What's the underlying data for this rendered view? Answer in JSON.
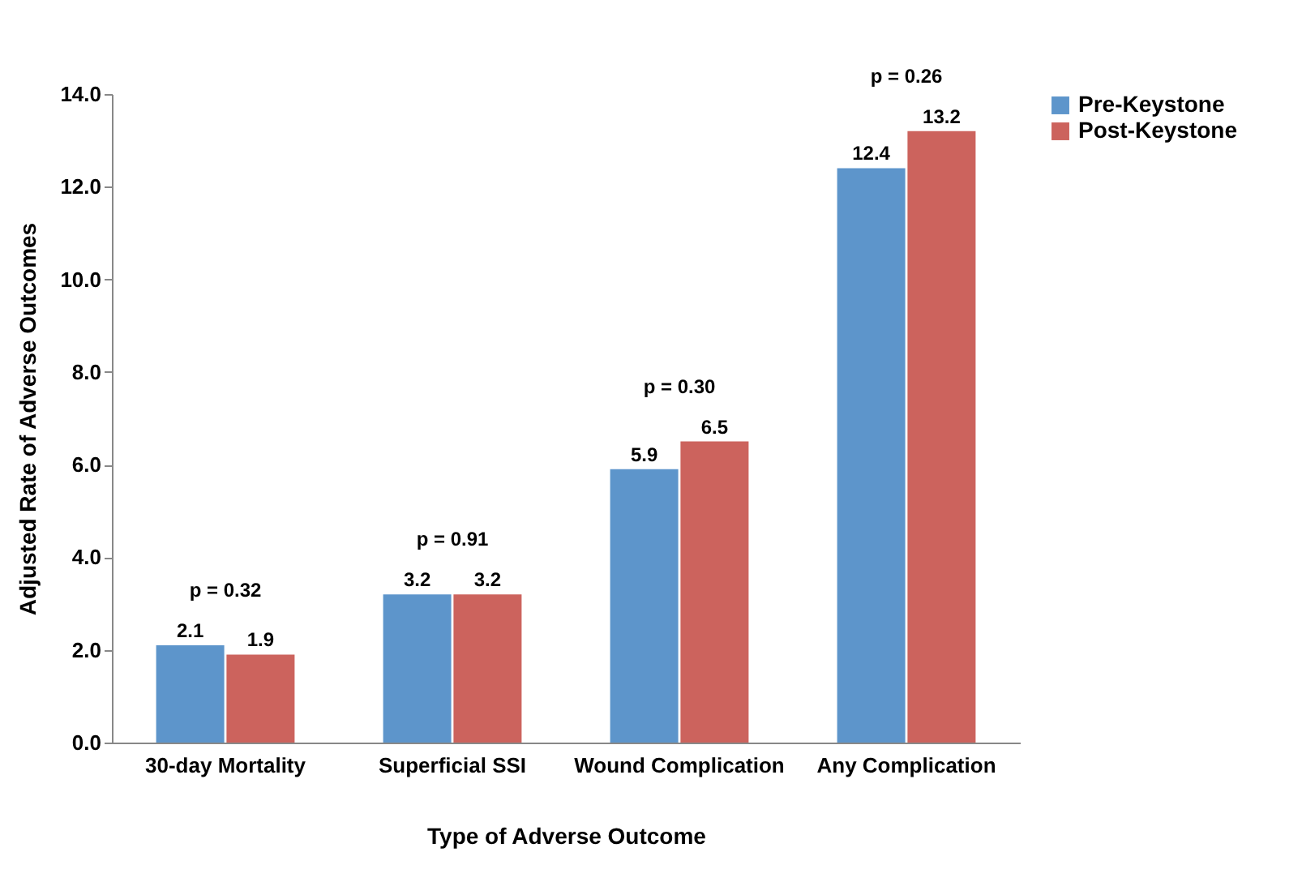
{
  "chart_data": {
    "type": "bar",
    "xlabel": "Type of Adverse Outcome",
    "ylabel": "Adjusted Rate of Adverse Outcomes",
    "categories": [
      "30-day Mortality",
      "Superficial SSI",
      "Wound Complication",
      "Any Complication"
    ],
    "series": [
      {
        "name": "Pre-Keystone",
        "color": "#5d95cb",
        "values": [
          2.1,
          3.2,
          5.9,
          12.4
        ]
      },
      {
        "name": "Post-Keystone",
        "color": "#cc635d",
        "values": [
          1.9,
          3.2,
          6.5,
          13.2
        ]
      }
    ],
    "ylim": [
      0,
      14
    ],
    "yticks": [
      {
        "value": 0,
        "label": "0.0"
      },
      {
        "value": 2,
        "label": "2.0"
      },
      {
        "value": 4,
        "label": "4.0"
      },
      {
        "value": 6,
        "label": "6.0"
      },
      {
        "value": 8,
        "label": "8.0"
      },
      {
        "value": 10,
        "label": "10.0"
      },
      {
        "value": 12,
        "label": "12.0"
      },
      {
        "value": 14,
        "label": "14.0"
      }
    ],
    "data_labels": true,
    "grid": false,
    "legend": "right",
    "annotations": [
      "p = 0.32",
      "p = 0.91",
      "p = 0.30",
      "p = 0.26"
    ]
  }
}
